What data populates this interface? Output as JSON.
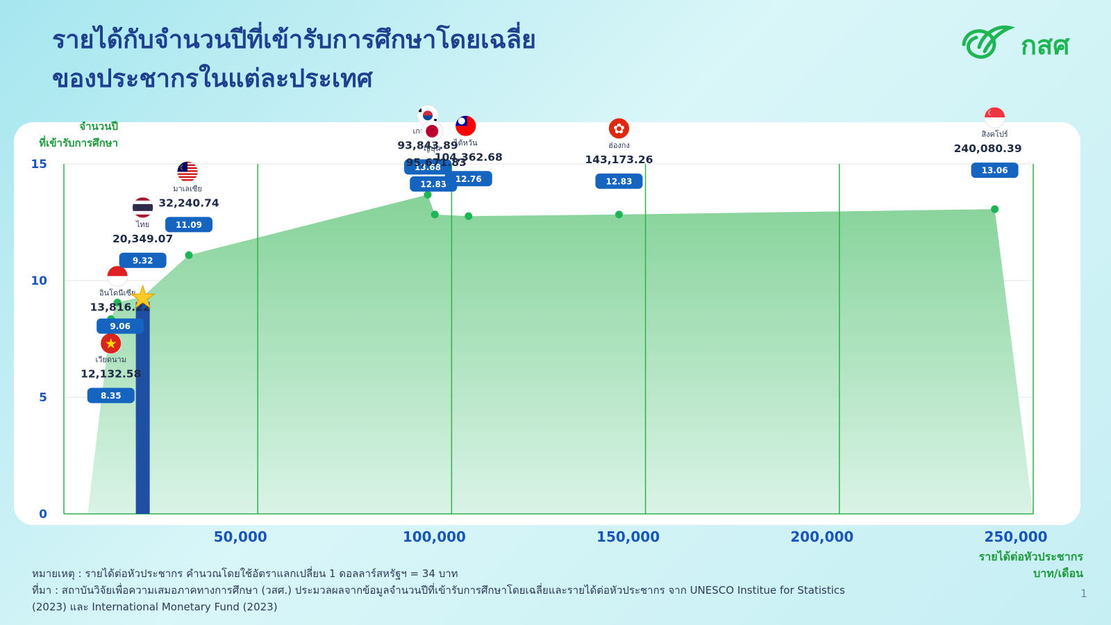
{
  "title_line1": "รายได้กับจำนวนปีที่เข้ารับการศึกษาโดยเฉลี่ย",
  "title_line2": "ของประชากรในแต่ละประเทศ",
  "logo_text": "กสศ",
  "y_axis_title_line1": "จำนวนปี",
  "y_axis_title_line2": "ที่เข้ารับการศึกษา",
  "x_axis_title_line1": "รายได้ต่อหัวประชากร",
  "x_axis_title_line2": "บาท/เดือน",
  "note": "หมายเหตุ : รายได้ต่อหัวประชากร คำนวณโดยใช้อัตราแลกเปลี่ยน 1 ดอลลาร์สหรัฐฯ = 34 บาท",
  "source": "ที่มา : สถาบันวิจัยเพื่อความเสมอภาคทางการศึกษา (วสศ.) ประมวลผลจากข้อมูลจำนวนปีที่เข้ารับการศึกษาโดยเฉลี่ยและรายได้ต่อหัวประชากร จาก UNESCO Institue for Statistics (2023) และ International Monetary Fund (2023)",
  "page_number": "1",
  "colors": {
    "title": "#1f3f8f",
    "accent_green": "#1fb454",
    "area_fill": "#8fd6a0",
    "badge": "#1565c0",
    "highlight_bar": "#1e4fa3",
    "axis_text": "#1a56b8"
  },
  "chart_data": {
    "type": "area",
    "xlim": [
      0,
      250000
    ],
    "ylim": [
      0,
      15
    ],
    "x_ticks": [
      "50,000",
      "100,000",
      "150,000",
      "200,000",
      "250,000"
    ],
    "y_ticks": [
      "15",
      "10",
      "5",
      "0"
    ],
    "grid": true,
    "highlight": "ไทย",
    "points": [
      {
        "country": "เวียดนาม",
        "x": 12132.58,
        "x_label": "12,132.58",
        "y": 8.35,
        "y_label": "8.35",
        "flag": "vietnam-flag-icon"
      },
      {
        "country": "อินโดนีเซีย",
        "x": 13816.22,
        "x_label": "13,816.22",
        "y": 9.06,
        "y_label": "9.06",
        "flag": "indonesia-flag-icon"
      },
      {
        "country": "ไทย",
        "x": 20349.07,
        "x_label": "20,349.07",
        "y": 9.32,
        "y_label": "9.32",
        "flag": "thailand-flag-icon"
      },
      {
        "country": "มาเลเซีย",
        "x": 32240.74,
        "x_label": "32,240.74",
        "y": 11.09,
        "y_label": "11.09",
        "flag": "malaysia-flag-icon"
      },
      {
        "country": "เกาหลีใต้",
        "x": 93843.89,
        "x_label": "93,843.89",
        "y": 13.68,
        "y_label": "13.68",
        "flag": "south-korea-flag-icon"
      },
      {
        "country": "ญี่ปุ่น",
        "x": 95671.83,
        "x_label": "95,671.83",
        "y": 12.83,
        "y_label": "12.83",
        "flag": "japan-flag-icon"
      },
      {
        "country": "ไต้หวัน",
        "x": 104362.68,
        "x_label": "104,362.68",
        "y": 12.76,
        "y_label": "12.76",
        "flag": "taiwan-flag-icon"
      },
      {
        "country": "ฮ่องกง",
        "x": 143173.26,
        "x_label": "143,173.26",
        "y": 12.83,
        "y_label": "12.83",
        "flag": "hong-kong-flag-icon"
      },
      {
        "country": "สิงคโปร์",
        "x": 240080.39,
        "x_label": "240,080.39",
        "y": 13.06,
        "y_label": "13.06",
        "flag": "singapore-flag-icon"
      }
    ]
  }
}
